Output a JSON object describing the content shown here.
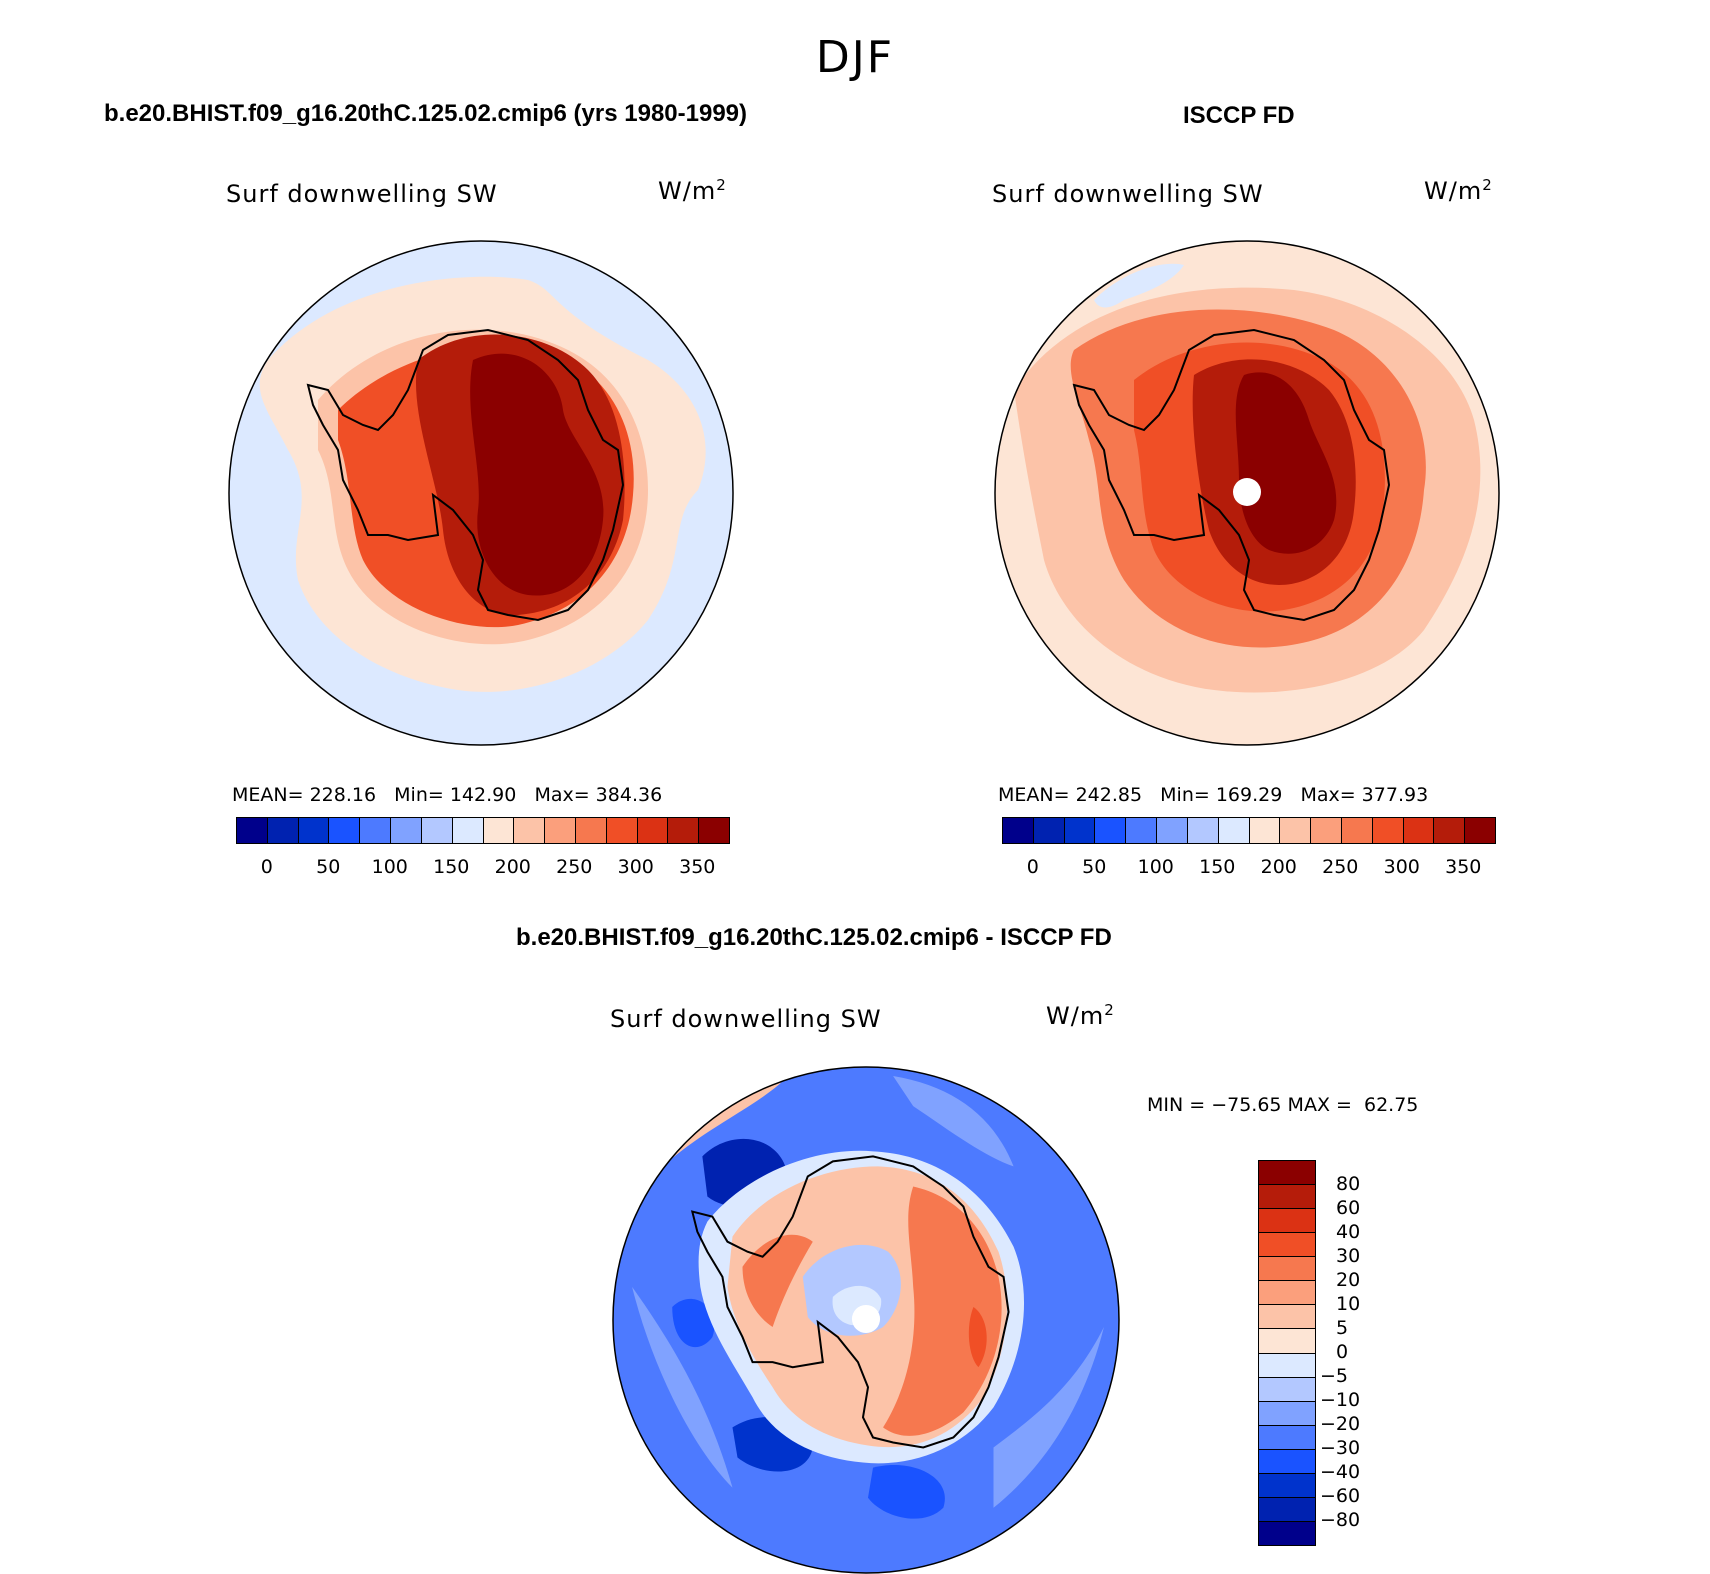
{
  "suptitle": "DJF",
  "panels": [
    {
      "id": "model",
      "title": "b.e20.BHIST.f09_g16.20thC.125.02.cmip6 (yrs 1980-1999)",
      "variable": "Surf downwelling SW",
      "units_base": "W/m",
      "units_exp": "2",
      "stats_text": "MEAN= 228.16   Min= 142.90   Max= 384.36",
      "mean": 228.16,
      "min": 142.9,
      "max": 384.36
    },
    {
      "id": "obs",
      "title": "ISCCP FD",
      "variable": "Surf downwelling SW",
      "units_base": "W/m",
      "units_exp": "2",
      "stats_text": "MEAN= 242.85   Min= 169.29   Max= 377.93",
      "mean": 242.85,
      "min": 169.29,
      "max": 377.93
    },
    {
      "id": "diff",
      "title": "b.e20.BHIST.f09_g16.20thC.125.02.cmip6 - ISCCP FD",
      "variable": "Surf downwelling SW",
      "units_base": "W/m",
      "units_exp": "2",
      "stats_text": "MIN = −75.65 MAX =  62.75",
      "min": -75.65,
      "max": 62.75
    }
  ],
  "colorbar_abs": {
    "colors": [
      "#00008b",
      "#0022b0",
      "#0033cc",
      "#1a53ff",
      "#4d7aff",
      "#80a2ff",
      "#b3c8ff",
      "#dce9ff",
      "#fde5d5",
      "#fcc3a8",
      "#fb9f7c",
      "#f6784f",
      "#f04f26",
      "#db3214",
      "#b41c0a",
      "#8b0000"
    ],
    "tick_labels": [
      "0",
      "50",
      "100",
      "150",
      "200",
      "250",
      "300",
      "350"
    ]
  },
  "colorbar_diff": {
    "colors_top_to_bottom": [
      "#8b0000",
      "#b51c0a",
      "#db3214",
      "#f04f26",
      "#f6784f",
      "#fb9f7c",
      "#fcc3a8",
      "#fde5d5",
      "#dce9ff",
      "#b3c8ff",
      "#80a2ff",
      "#4d7aff",
      "#1a53ff",
      "#0033cc",
      "#0022b0",
      "#00008b"
    ],
    "tick_labels": [
      "80",
      "60",
      "40",
      "30",
      "20",
      "10",
      "5",
      "0",
      "−5",
      "−10",
      "−20",
      "−30",
      "−40",
      "−60",
      "−80"
    ]
  },
  "map_colors": {
    "ocean_model": "#dce9ff",
    "ocean_obs": "#fde5d5",
    "ocean_diff": "#4d7aff",
    "pole_missing": "#ffffff",
    "coast": "#000000"
  }
}
